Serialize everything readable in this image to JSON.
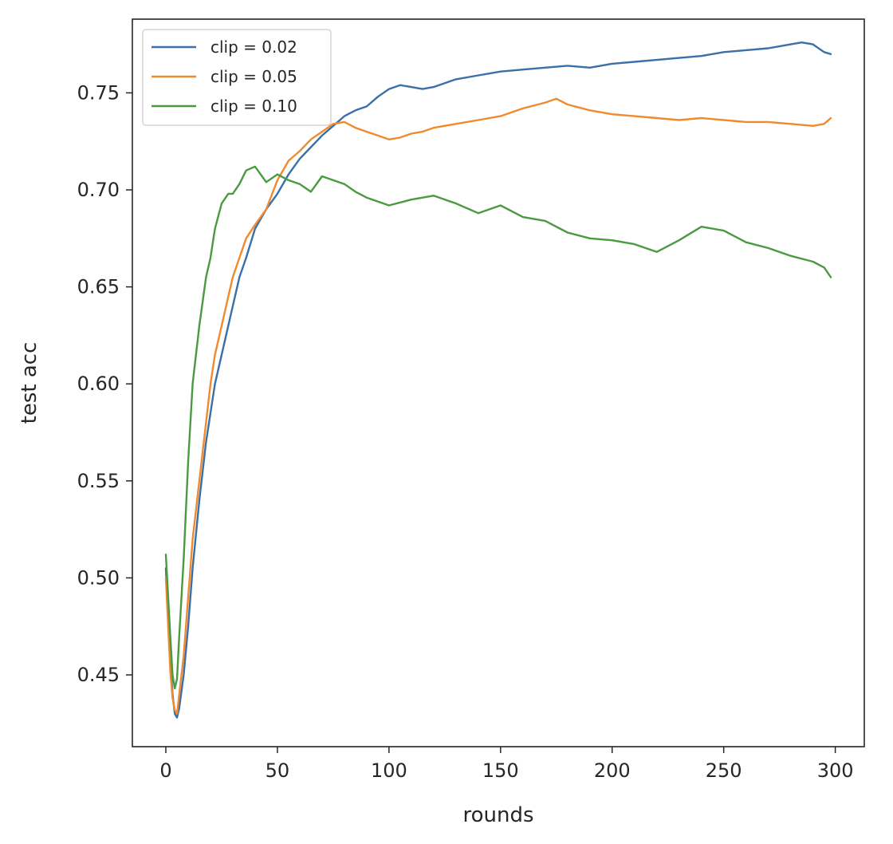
{
  "chart_data": {
    "type": "line",
    "title": "",
    "xlabel": "rounds",
    "ylabel": "test acc",
    "xlim": [
      -15,
      313
    ],
    "ylim": [
      0.413,
      0.788
    ],
    "xticks": [
      0,
      50,
      100,
      150,
      200,
      250,
      300
    ],
    "yticks": [
      0.45,
      0.5,
      0.55,
      0.6,
      0.65,
      0.7,
      0.75
    ],
    "ytick_labels": [
      "0.45",
      "0.50",
      "0.55",
      "0.60",
      "0.65",
      "0.70",
      "0.75"
    ],
    "grid": false,
    "legend_position": "top-left",
    "series": [
      {
        "name": "clip = 0.02",
        "color": "#3a6fa8",
        "x": [
          0,
          2,
          3,
          4,
          5,
          6,
          8,
          10,
          12,
          15,
          18,
          20,
          22,
          25,
          28,
          30,
          33,
          36,
          40,
          45,
          50,
          55,
          60,
          65,
          70,
          75,
          80,
          85,
          90,
          95,
          100,
          105,
          110,
          115,
          120,
          125,
          130,
          140,
          150,
          160,
          170,
          180,
          190,
          200,
          210,
          220,
          230,
          240,
          250,
          260,
          270,
          280,
          285,
          290,
          295,
          298
        ],
        "y": [
          0.505,
          0.458,
          0.44,
          0.43,
          0.428,
          0.433,
          0.45,
          0.475,
          0.505,
          0.54,
          0.57,
          0.585,
          0.6,
          0.615,
          0.63,
          0.64,
          0.655,
          0.665,
          0.68,
          0.69,
          0.698,
          0.708,
          0.716,
          0.722,
          0.728,
          0.733,
          0.738,
          0.741,
          0.743,
          0.748,
          0.752,
          0.754,
          0.753,
          0.752,
          0.753,
          0.755,
          0.757,
          0.759,
          0.761,
          0.762,
          0.763,
          0.764,
          0.763,
          0.765,
          0.766,
          0.767,
          0.768,
          0.769,
          0.771,
          0.772,
          0.773,
          0.775,
          0.776,
          0.775,
          0.771,
          0.77
        ]
      },
      {
        "name": "clip = 0.05",
        "color": "#f08a2e",
        "x": [
          0,
          2,
          3,
          4,
          5,
          6,
          8,
          10,
          12,
          15,
          18,
          20,
          22,
          25,
          28,
          30,
          33,
          36,
          40,
          45,
          50,
          55,
          60,
          65,
          70,
          75,
          80,
          85,
          90,
          95,
          100,
          105,
          110,
          115,
          120,
          130,
          140,
          150,
          160,
          170,
          175,
          180,
          190,
          200,
          210,
          220,
          230,
          240,
          250,
          260,
          270,
          280,
          290,
          295,
          298
        ],
        "y": [
          0.5,
          0.452,
          0.438,
          0.432,
          0.43,
          0.44,
          0.46,
          0.49,
          0.52,
          0.55,
          0.58,
          0.6,
          0.615,
          0.63,
          0.645,
          0.655,
          0.665,
          0.675,
          0.682,
          0.69,
          0.705,
          0.715,
          0.72,
          0.726,
          0.73,
          0.734,
          0.735,
          0.732,
          0.73,
          0.728,
          0.726,
          0.727,
          0.729,
          0.73,
          0.732,
          0.734,
          0.736,
          0.738,
          0.742,
          0.745,
          0.747,
          0.744,
          0.741,
          0.739,
          0.738,
          0.737,
          0.736,
          0.737,
          0.736,
          0.735,
          0.735,
          0.734,
          0.733,
          0.734,
          0.737
        ]
      },
      {
        "name": "clip = 0.10",
        "color": "#4a9a40",
        "x": [
          0,
          2,
          3,
          4,
          5,
          6,
          8,
          10,
          12,
          15,
          18,
          20,
          22,
          25,
          28,
          30,
          33,
          36,
          40,
          45,
          50,
          55,
          60,
          65,
          70,
          75,
          80,
          85,
          90,
          95,
          100,
          110,
          120,
          130,
          140,
          150,
          160,
          170,
          180,
          190,
          200,
          210,
          220,
          230,
          240,
          250,
          260,
          270,
          280,
          290,
          295,
          298
        ],
        "y": [
          0.512,
          0.47,
          0.45,
          0.443,
          0.448,
          0.47,
          0.51,
          0.56,
          0.6,
          0.63,
          0.655,
          0.665,
          0.68,
          0.693,
          0.698,
          0.698,
          0.703,
          0.71,
          0.712,
          0.704,
          0.708,
          0.705,
          0.703,
          0.699,
          0.707,
          0.705,
          0.703,
          0.699,
          0.696,
          0.694,
          0.692,
          0.695,
          0.697,
          0.693,
          0.688,
          0.692,
          0.686,
          0.684,
          0.678,
          0.675,
          0.674,
          0.672,
          0.668,
          0.674,
          0.681,
          0.679,
          0.673,
          0.67,
          0.666,
          0.663,
          0.66,
          0.655
        ]
      }
    ]
  }
}
